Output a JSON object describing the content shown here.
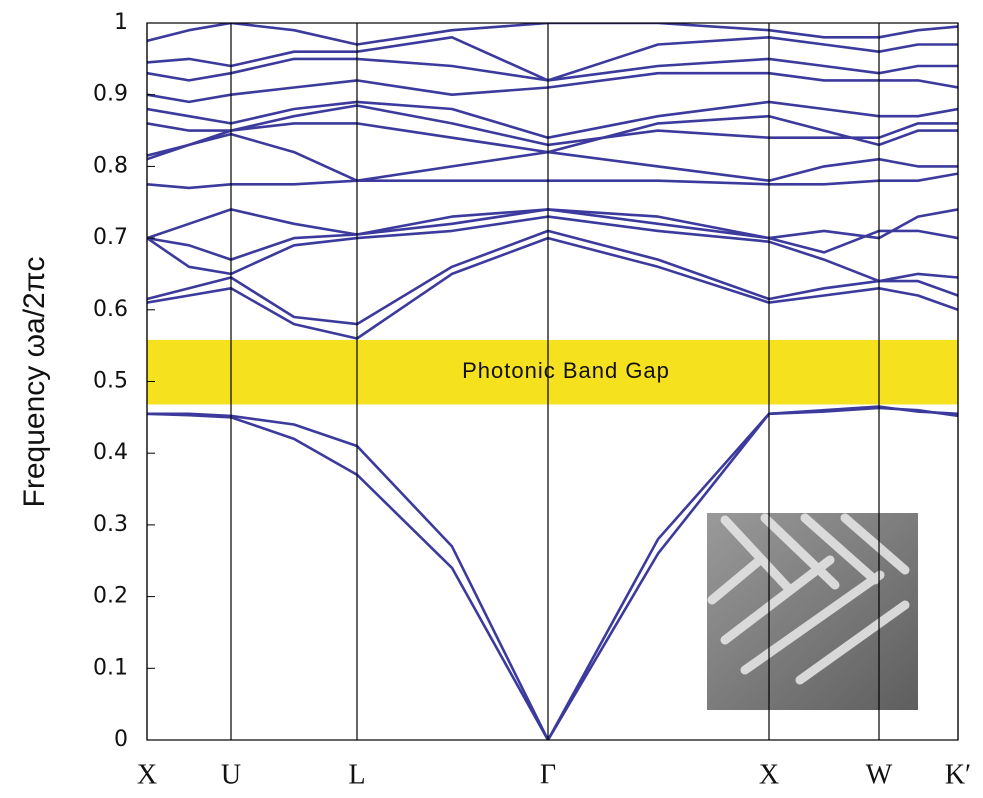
{
  "chart_data": {
    "type": "band-structure",
    "y_label": "Frequency  ωa/2πc",
    "color": "#3c3a9c",
    "x": [
      0,
      42,
      84,
      147,
      210,
      305,
      401,
      511,
      622,
      677,
      732,
      771,
      811
    ],
    "xlim": [
      0,
      811
    ],
    "xticks": [
      {
        "value": 0,
        "label": "X"
      },
      {
        "value": 84,
        "label": "U"
      },
      {
        "value": 210,
        "label": "L"
      },
      {
        "value": 401,
        "label": "Γ"
      },
      {
        "value": 622,
        "label": "X"
      },
      {
        "value": 732,
        "label": "W"
      },
      {
        "value": 811,
        "label": "K′"
      }
    ],
    "ylim": [
      0,
      1
    ],
    "yticks": [
      0,
      0.1,
      0.2,
      0.3,
      0.4,
      0.5,
      0.6,
      0.7,
      0.8,
      0.9,
      1
    ],
    "band_gap": {
      "label": "Photonic Band Gap",
      "range": [
        0.468,
        0.558
      ],
      "color": "#f5e11e"
    },
    "series": [
      {
        "values": [
          0.455,
          0.453,
          0.45,
          0.42,
          0.37,
          0.24,
          0,
          0.26,
          0.455,
          0.458,
          0.463,
          0.46,
          0.452
        ]
      },
      {
        "values": [
          0.455,
          0.455,
          0.452,
          0.44,
          0.41,
          0.27,
          0,
          0.28,
          0.455,
          0.46,
          0.465,
          0.458,
          0.455
        ]
      },
      {
        "values": [
          0.61,
          0.62,
          0.63,
          0.58,
          0.56,
          0.65,
          0.7,
          0.66,
          0.61,
          0.62,
          0.63,
          0.62,
          0.6
        ]
      },
      {
        "values": [
          0.615,
          0.63,
          0.645,
          0.59,
          0.58,
          0.66,
          0.71,
          0.67,
          0.615,
          0.63,
          0.64,
          0.64,
          0.62
        ]
      },
      {
        "values": [
          0.7,
          0.66,
          0.65,
          0.69,
          0.7,
          0.71,
          0.73,
          0.71,
          0.695,
          0.67,
          0.64,
          0.65,
          0.645
        ]
      },
      {
        "values": [
          0.7,
          0.69,
          0.67,
          0.7,
          0.705,
          0.72,
          0.74,
          0.72,
          0.7,
          0.71,
          0.7,
          0.73,
          0.74
        ]
      },
      {
        "values": [
          0.7,
          0.72,
          0.74,
          0.72,
          0.705,
          0.73,
          0.74,
          0.73,
          0.7,
          0.68,
          0.71,
          0.71,
          0.7
        ]
      },
      {
        "values": [
          0.775,
          0.77,
          0.775,
          0.775,
          0.78,
          0.78,
          0.78,
          0.78,
          0.775,
          0.775,
          0.78,
          0.78,
          0.79
        ]
      },
      {
        "values": [
          0.81,
          0.83,
          0.845,
          0.82,
          0.78,
          0.8,
          0.82,
          0.8,
          0.78,
          0.8,
          0.81,
          0.8,
          0.8
        ]
      },
      {
        "values": [
          0.815,
          0.83,
          0.85,
          0.86,
          0.86,
          0.84,
          0.82,
          0.86,
          0.87,
          0.85,
          0.83,
          0.85,
          0.85
        ]
      },
      {
        "values": [
          0.86,
          0.85,
          0.85,
          0.87,
          0.885,
          0.86,
          0.83,
          0.85,
          0.84,
          0.84,
          0.84,
          0.86,
          0.86
        ]
      },
      {
        "values": [
          0.88,
          0.87,
          0.86,
          0.88,
          0.89,
          0.88,
          0.84,
          0.87,
          0.89,
          0.88,
          0.87,
          0.87,
          0.88
        ]
      },
      {
        "values": [
          0.9,
          0.89,
          0.9,
          0.91,
          0.92,
          0.9,
          0.91,
          0.93,
          0.93,
          0.92,
          0.92,
          0.92,
          0.91
        ]
      },
      {
        "values": [
          0.93,
          0.92,
          0.93,
          0.95,
          0.95,
          0.94,
          0.92,
          0.94,
          0.95,
          0.94,
          0.93,
          0.94,
          0.94
        ]
      },
      {
        "values": [
          0.945,
          0.95,
          0.94,
          0.96,
          0.96,
          0.98,
          0.92,
          0.97,
          0.98,
          0.97,
          0.96,
          0.97,
          0.97
        ]
      },
      {
        "values": [
          0.975,
          0.99,
          1.0,
          0.99,
          0.97,
          0.99,
          1.0,
          1.0,
          0.99,
          0.98,
          0.98,
          0.99,
          0.995
        ]
      }
    ]
  }
}
